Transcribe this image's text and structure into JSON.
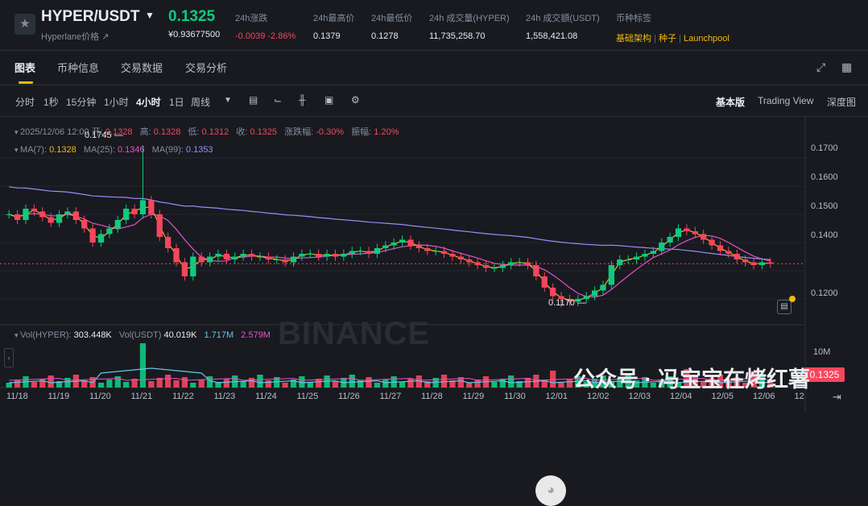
{
  "header": {
    "favorite_icon": "star-icon",
    "pair": "HYPER/USDT",
    "pair_sub": "Hyperlane价格 ↗",
    "price": "0.1325",
    "price_usd": "¥0.93677500",
    "stats": [
      {
        "label": "24h涨跌",
        "value": "-0.0039 -2.86%",
        "color": "#f6465d"
      },
      {
        "label": "24h最高价",
        "value": "0.1379"
      },
      {
        "label": "24h最低价",
        "value": "0.1278"
      },
      {
        "label": "24h 成交量(HYPER)",
        "value": "11,735,258.70"
      },
      {
        "label": "24h 成交額(USDT)",
        "value": "1,558,421.08"
      }
    ],
    "tags_label": "币种标签",
    "tags": [
      "基础架构",
      "种子",
      "Launchpool"
    ]
  },
  "tabs": [
    "图表",
    "币种信息",
    "交易数据",
    "交易分析"
  ],
  "toolbar": {
    "intervals": [
      "分时",
      "1秒",
      "15分钟",
      "1小时",
      "4小时",
      "1日",
      "周线"
    ],
    "active_interval": "4小时",
    "views": [
      "基本版",
      "Trading View",
      "深度图"
    ]
  },
  "ohlc": {
    "date": "2025/12/06 12:00",
    "open_label": "开:",
    "open": "0.1328",
    "high_label": "高:",
    "high": "0.1328",
    "low_label": "低:",
    "low": "0.1312",
    "close_label": "收:",
    "close": "0.1325",
    "change_label": "涨跌幅:",
    "change": "-0.30%",
    "amp_label": "振幅:",
    "amp": "1.20%"
  },
  "ma": [
    {
      "label": "MA(7):",
      "value": "0.1328",
      "color": "#f0b90b"
    },
    {
      "label": "MA(25):",
      "value": "0.1346",
      "color": "#e851c7"
    },
    {
      "label": "MA(99):",
      "value": "0.1353",
      "color": "#9a8cf6"
    }
  ],
  "vol": {
    "label1": "Vol(HYPER):",
    "value1": "303.448K",
    "label2": "Vol(USDT)",
    "value2": "40.019K",
    "value3": "1.717M",
    "value4": "2.579M"
  },
  "price_axis": [
    "0.1700",
    "0.1600",
    "0.1500",
    "0.1400",
    "0.1200"
  ],
  "vol_axis": "10M",
  "current_price_tag": "0.1325",
  "high_label": "0.1745",
  "low_label": "0.1170",
  "dates": [
    "11/18",
    "11/19",
    "11/20",
    "11/21",
    "11/22",
    "11/23",
    "11/24",
    "11/25",
    "11/26",
    "11/27",
    "11/28",
    "11/29",
    "11/30",
    "12/01",
    "12/02",
    "12/03",
    "12/04",
    "12/05",
    "12/06",
    "12"
  ],
  "watermark": "BINANCE",
  "wechat": "公众号 · 冯宝宝在烤红薯",
  "chart_data": {
    "type": "candlestick",
    "interval": "4h",
    "ylim": [
      0.116,
      0.176
    ],
    "closes": [
      0.15,
      0.148,
      0.152,
      0.151,
      0.149,
      0.147,
      0.15,
      0.151,
      0.148,
      0.145,
      0.14,
      0.143,
      0.145,
      0.148,
      0.152,
      0.15,
      0.155,
      0.15,
      0.142,
      0.138,
      0.133,
      0.128,
      0.135,
      0.133,
      0.135,
      0.136,
      0.134,
      0.135,
      0.136,
      0.135,
      0.135,
      0.134,
      0.134,
      0.133,
      0.135,
      0.136,
      0.136,
      0.135,
      0.136,
      0.135,
      0.136,
      0.137,
      0.137,
      0.136,
      0.138,
      0.139,
      0.14,
      0.141,
      0.139,
      0.138,
      0.137,
      0.137,
      0.136,
      0.135,
      0.134,
      0.133,
      0.132,
      0.131,
      0.131,
      0.132,
      0.133,
      0.133,
      0.132,
      0.128,
      0.124,
      0.121,
      0.12,
      0.119,
      0.12,
      0.121,
      0.123,
      0.125,
      0.132,
      0.134,
      0.134,
      0.135,
      0.136,
      0.137,
      0.14,
      0.142,
      0.145,
      0.144,
      0.143,
      0.141,
      0.139,
      0.137,
      0.136,
      0.134,
      0.133,
      0.132,
      0.133,
      0.1325
    ],
    "price_high": 0.1745,
    "price_low": 0.117
  }
}
